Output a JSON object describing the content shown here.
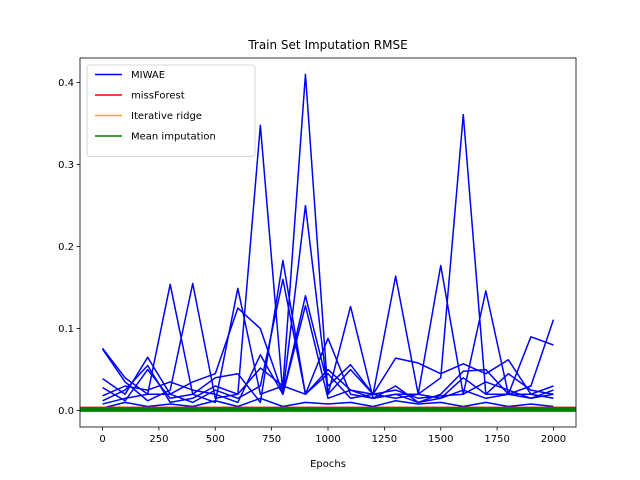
{
  "chart_data": {
    "type": "line",
    "title": "Train Set Imputation RMSE",
    "xlabel": "Epochs",
    "ylabel": "",
    "xlim": [
      -100,
      2100
    ],
    "ylim": [
      -0.02,
      0.43
    ],
    "xticks": [
      0,
      250,
      500,
      750,
      1000,
      1250,
      1500,
      1750,
      2000
    ],
    "yticks": [
      0.0,
      0.1,
      0.2,
      0.3,
      0.4
    ],
    "grid": false,
    "legend": {
      "placement": "top-left",
      "entries": [
        {
          "name": "MIWAE",
          "color": "#0000ff"
        },
        {
          "name": "missForest",
          "color": "#ff0000"
        },
        {
          "name": "Iterative ridge",
          "color": "#ffa500"
        },
        {
          "name": "Mean imputation",
          "color": "#008000"
        }
      ]
    },
    "series": [
      {
        "group": "MIWAE",
        "color": "#0000ff",
        "x": [
          0,
          100,
          200,
          300,
          400,
          500,
          600,
          700,
          800,
          900,
          1000,
          1100,
          1200,
          1300,
          1400,
          1500,
          1600,
          1700,
          1800,
          1900,
          2000
        ],
        "y": [
          0.076,
          0.04,
          0.02,
          0.154,
          0.02,
          0.01,
          0.149,
          0.02,
          0.03,
          0.41,
          0.02,
          0.05,
          0.02,
          0.164,
          0.02,
          0.177,
          0.02,
          0.146,
          0.02,
          0.09,
          0.08
        ]
      },
      {
        "group": "MIWAE",
        "color": "#0000ff",
        "x": [
          0,
          100,
          200,
          300,
          400,
          500,
          600,
          700,
          800,
          900,
          1000,
          1100,
          1200,
          1300,
          1400,
          1500,
          1600,
          1700,
          1800,
          1900,
          2000
        ],
        "y": [
          0.075,
          0.035,
          0.012,
          0.025,
          0.155,
          0.015,
          0.02,
          0.348,
          0.02,
          0.25,
          0.02,
          0.127,
          0.015,
          0.02,
          0.02,
          0.04,
          0.361,
          0.02,
          0.02,
          0.03,
          0.111
        ]
      },
      {
        "group": "MIWAE",
        "color": "#0000ff",
        "x": [
          0,
          100,
          200,
          300,
          400,
          500,
          600,
          700,
          800,
          900,
          1000,
          1100,
          1200,
          1300,
          1400,
          1500,
          1600,
          1700,
          1800,
          1900,
          2000
        ],
        "y": [
          0.039,
          0.02,
          0.065,
          0.02,
          0.035,
          0.045,
          0.125,
          0.1,
          0.02,
          0.14,
          0.03,
          0.056,
          0.02,
          0.064,
          0.058,
          0.045,
          0.057,
          0.045,
          0.062,
          0.02,
          0.015
        ]
      },
      {
        "group": "MIWAE",
        "color": "#0000ff",
        "x": [
          0,
          100,
          200,
          300,
          400,
          500,
          600,
          700,
          800,
          900,
          1000,
          1100,
          1200,
          1300,
          1400,
          1500,
          1600,
          1700,
          1800,
          1900,
          2000
        ],
        "y": [
          0.028,
          0.012,
          0.05,
          0.015,
          0.02,
          0.04,
          0.045,
          0.01,
          0.183,
          0.02,
          0.088,
          0.02,
          0.015,
          0.03,
          0.01,
          0.02,
          0.048,
          0.05,
          0.02,
          0.02,
          0.03
        ]
      },
      {
        "group": "MIWAE",
        "color": "#0000ff",
        "x": [
          0,
          100,
          200,
          300,
          400,
          500,
          600,
          700,
          800,
          900,
          1000,
          1100,
          1200,
          1300,
          1400,
          1500,
          1600,
          1700,
          1800,
          1900,
          2000
        ],
        "y": [
          0.018,
          0.03,
          0.025,
          0.035,
          0.025,
          0.02,
          0.01,
          0.068,
          0.02,
          0.128,
          0.015,
          0.025,
          0.02,
          0.015,
          0.02,
          0.015,
          0.04,
          0.02,
          0.045,
          0.025,
          0.02
        ]
      },
      {
        "group": "MIWAE",
        "color": "#0000ff",
        "x": [
          0,
          100,
          200,
          300,
          400,
          500,
          600,
          700,
          800,
          900,
          1000,
          1100,
          1200,
          1300,
          1400,
          1500,
          1600,
          1700,
          1800,
          1900,
          2000
        ],
        "y": [
          0.012,
          0.025,
          0.055,
          0.01,
          0.015,
          0.03,
          0.02,
          0.052,
          0.03,
          0.02,
          0.045,
          0.015,
          0.02,
          0.025,
          0.015,
          0.018,
          0.02,
          0.035,
          0.025,
          0.015,
          0.02
        ]
      },
      {
        "group": "MIWAE",
        "color": "#0000ff",
        "x": [
          0,
          100,
          200,
          300,
          400,
          500,
          600,
          700,
          800,
          900,
          1000,
          1100,
          1200,
          1300,
          1400,
          1500,
          1600,
          1700,
          1800,
          1900,
          2000
        ],
        "y": [
          0.008,
          0.015,
          0.02,
          0.02,
          0.01,
          0.025,
          0.015,
          0.03,
          0.16,
          0.02,
          0.05,
          0.025,
          0.015,
          0.02,
          0.01,
          0.015,
          0.025,
          0.015,
          0.02,
          0.015,
          0.025
        ]
      },
      {
        "group": "MIWAE",
        "color": "#0000ff",
        "x": [
          0,
          100,
          200,
          300,
          400,
          500,
          600,
          700,
          800,
          900,
          1000,
          1100,
          1200,
          1300,
          1400,
          1500,
          1600,
          1700,
          1800,
          1900,
          2000
        ],
        "y": [
          0.003,
          0.01,
          0.005,
          0.008,
          0.005,
          0.012,
          0.005,
          0.015,
          0.005,
          0.01,
          0.008,
          0.01,
          0.005,
          0.012,
          0.008,
          0.01,
          0.005,
          0.01,
          0.005,
          0.008,
          0.005
        ]
      },
      {
        "group": "missForest",
        "color": "#ff0000",
        "x": [
          -100,
          2100
        ],
        "y": [
          0.004,
          0.004
        ]
      },
      {
        "group": "Iterative ridge",
        "color": "#ffa500",
        "x": [
          -100,
          2100
        ],
        "y": [
          0.002,
          0.002
        ]
      },
      {
        "group": "Mean imputation",
        "color": "#008000",
        "x": [
          -100,
          2100
        ],
        "y": [
          0.0015,
          0.0015
        ]
      }
    ]
  }
}
